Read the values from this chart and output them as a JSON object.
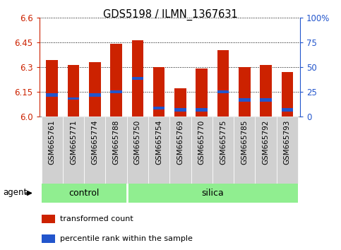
{
  "title": "GDS5198 / ILMN_1367631",
  "samples": [
    "GSM665761",
    "GSM665771",
    "GSM665774",
    "GSM665788",
    "GSM665750",
    "GSM665754",
    "GSM665769",
    "GSM665770",
    "GSM665775",
    "GSM665785",
    "GSM665792",
    "GSM665793"
  ],
  "groups": [
    "control",
    "control",
    "control",
    "control",
    "silica",
    "silica",
    "silica",
    "silica",
    "silica",
    "silica",
    "silica",
    "silica"
  ],
  "transformed_count": [
    6.34,
    6.31,
    6.33,
    6.44,
    6.46,
    6.3,
    6.17,
    6.29,
    6.4,
    6.3,
    6.31,
    6.27
  ],
  "percentile_bottom": [
    6.12,
    6.1,
    6.12,
    6.14,
    6.22,
    6.04,
    6.03,
    6.03,
    6.14,
    6.09,
    6.09,
    6.03
  ],
  "percentile_height": [
    0.018,
    0.015,
    0.018,
    0.015,
    0.018,
    0.018,
    0.018,
    0.018,
    0.018,
    0.018,
    0.018,
    0.018
  ],
  "ylim": [
    6.0,
    6.6
  ],
  "yticks_left": [
    6.0,
    6.15,
    6.3,
    6.45,
    6.6
  ],
  "yticks_right": [
    0,
    25,
    50,
    75,
    100
  ],
  "bar_color": "#cc2200",
  "blue_color": "#2255cc",
  "bar_width": 0.55,
  "group_bg_color": "#90ee90",
  "tick_label_bg": "#cccccc",
  "agent_label": "agent",
  "group_control_label": "control",
  "group_silica_label": "silica",
  "legend_red": "transformed count",
  "legend_blue": "percentile rank within the sample",
  "n_control": 4,
  "figsize": [
    4.83,
    3.54
  ],
  "dpi": 100
}
